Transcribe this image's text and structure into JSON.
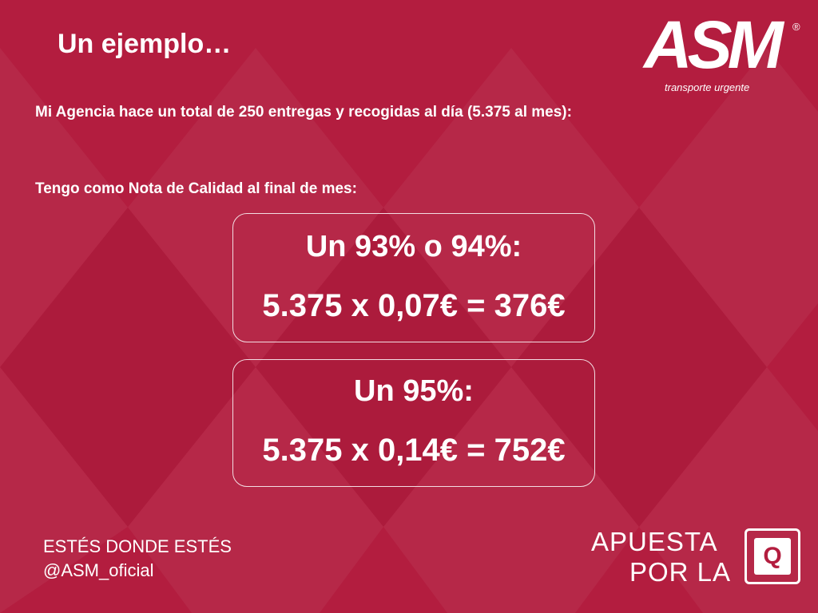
{
  "header": {
    "title": "Un ejemplo…",
    "logo": {
      "brand": "ASM",
      "registered": "®",
      "tagline": "transporte urgente"
    }
  },
  "body": {
    "intro": "Mi Agencia hace un total de 250 entregas y recogidas al día (5.375 al mes):",
    "quality_intro": "Tengo como Nota de Calidad al final de mes:",
    "boxes": [
      {
        "heading": "Un 93% o 94%:",
        "formula": "5.375 x 0,07€ = 376€"
      },
      {
        "heading": "Un 95%:",
        "formula": "5.375 x 0,14€ = 752€"
      }
    ]
  },
  "footer": {
    "slogan": "ESTÉS DONDE ESTÉS",
    "handle": "@ASM_oficial",
    "campaign": {
      "line1": "APUESTA",
      "line2": "POR LA",
      "badge": "Q"
    }
  }
}
